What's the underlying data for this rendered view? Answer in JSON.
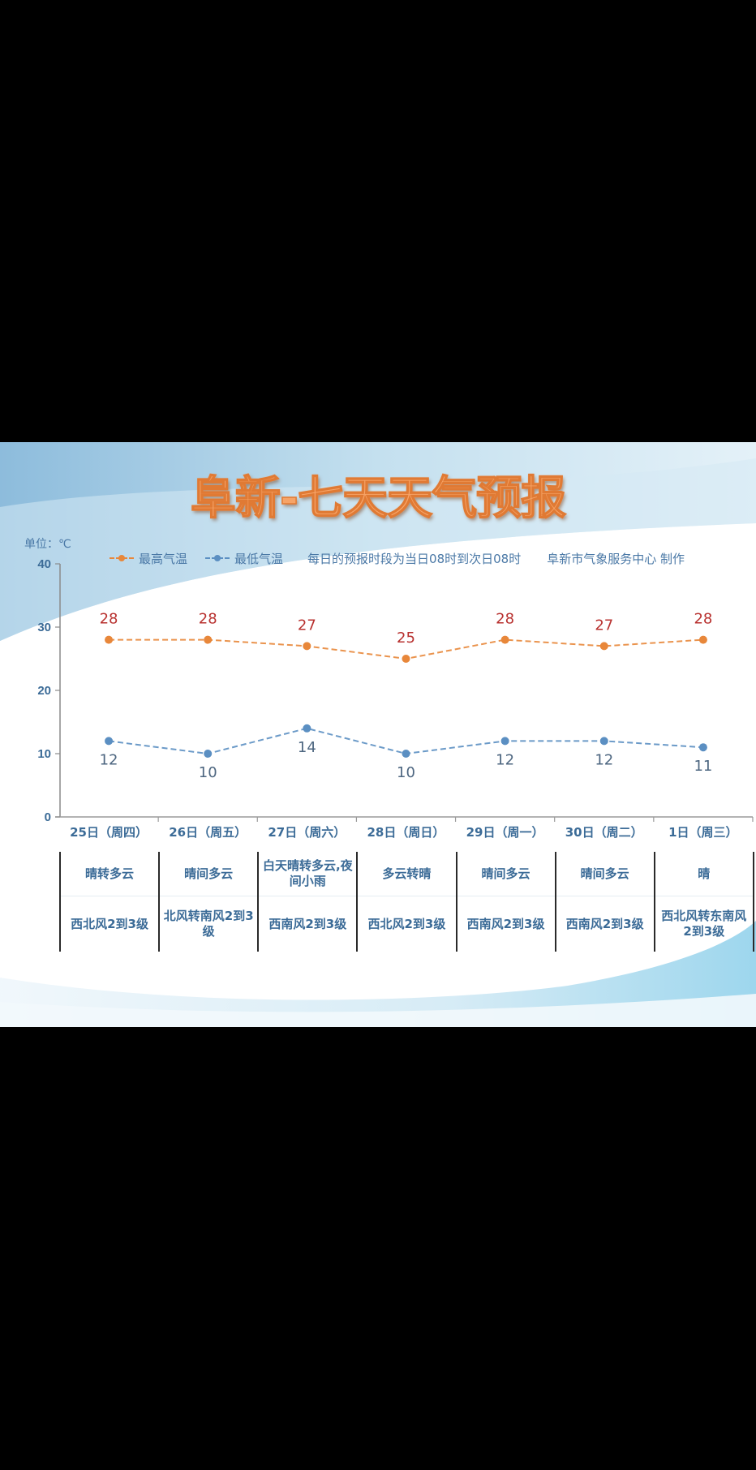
{
  "title": "阜新-七天天气预报",
  "unit_label": "单位：℃",
  "legend": {
    "high_label": "最高气温",
    "low_label": "最低气温",
    "note": "每日的预报时段为当日08时到次日08时",
    "credit": "阜新市气象服务中心 制作"
  },
  "colors": {
    "high_line": "#e8873a",
    "high_label": "#b8312f",
    "low_line": "#5b8fc2",
    "low_label": "#4d6680",
    "axis_text": "#3b6b97",
    "title": "#f6a468"
  },
  "days": [
    {
      "label": "25日（周四）",
      "weather": "晴转多云",
      "wind": "西北风2到3级"
    },
    {
      "label": "26日（周五）",
      "weather": "晴间多云",
      "wind": "北风转南风2到3级"
    },
    {
      "label": "27日（周六）",
      "weather": "白天晴转多云,夜间小雨",
      "wind": "西南风2到3级"
    },
    {
      "label": "28日（周日）",
      "weather": "多云转晴",
      "wind": "西北风2到3级"
    },
    {
      "label": "29日（周一）",
      "weather": "晴间多云",
      "wind": "西南风2到3级"
    },
    {
      "label": "30日（周二）",
      "weather": "晴间多云",
      "wind": "西南风2到3级"
    },
    {
      "label": "1日（周三）",
      "weather": "晴",
      "wind": "西北风转东南风2到3级"
    }
  ],
  "chart_data": {
    "type": "line",
    "title": "阜新-七天天气预报",
    "xlabel": "",
    "ylabel": "单位：℃",
    "categories": [
      "25日（周四）",
      "26日（周五）",
      "27日（周六）",
      "28日（周日）",
      "29日（周一）",
      "30日（周二）",
      "1日（周三）"
    ],
    "series": [
      {
        "name": "最高气温",
        "values": [
          28,
          28,
          27,
          25,
          28,
          27,
          28
        ],
        "color": "#e8873a",
        "style": "dashed"
      },
      {
        "name": "最低气温",
        "values": [
          12,
          10,
          14,
          10,
          12,
          12,
          11
        ],
        "color": "#5b8fc2",
        "style": "dashed"
      }
    ],
    "yticks": [
      0,
      10,
      20,
      30,
      40
    ],
    "ylim": [
      0,
      40
    ],
    "grid": false,
    "legend_position": "top",
    "data_labels": true
  }
}
